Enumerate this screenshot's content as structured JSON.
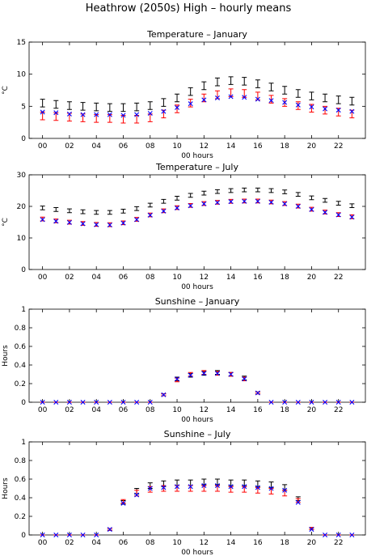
{
  "figure": {
    "title": "Heathrow (2050s) High – hourly means"
  },
  "colors": {
    "black_series": "#000000",
    "red_series": "#ff0000",
    "blue_series": "#0000ff"
  },
  "chart_data": [
    {
      "type": "scatter",
      "title": "Temperature – January",
      "xlabel": "00 hours",
      "ylabel": "°C",
      "ylim": [
        0,
        15
      ],
      "yticks": [
        "0",
        "5",
        "10",
        "15"
      ],
      "xticks": [
        "00",
        "02",
        "04",
        "06",
        "08",
        "10",
        "12",
        "14",
        "16",
        "18",
        "20",
        "22"
      ],
      "x": [
        0,
        1,
        2,
        3,
        4,
        5,
        6,
        7,
        8,
        9,
        10,
        11,
        12,
        13,
        14,
        15,
        16,
        17,
        18,
        19,
        20,
        21,
        22,
        23
      ],
      "series": [
        {
          "marker": "errorbar",
          "color": "#000000",
          "values": [
            5.5,
            5.3,
            5.1,
            5.0,
            4.9,
            4.8,
            4.8,
            4.9,
            5.1,
            5.6,
            6.3,
            7.3,
            8.2,
            8.8,
            9.0,
            8.9,
            8.5,
            8.0,
            7.5,
            7.0,
            6.6,
            6.3,
            6.0,
            5.8
          ],
          "err": [
            0.6,
            0.6,
            0.6,
            0.6,
            0.6,
            0.6,
            0.6,
            0.6,
            0.6,
            0.6,
            0.6,
            0.6,
            0.6,
            0.6,
            0.6,
            0.6,
            0.6,
            0.6,
            0.6,
            0.6,
            0.6,
            0.6,
            0.6,
            0.6
          ]
        },
        {
          "marker": "errorbar",
          "color": "#ff0000",
          "values": [
            3.5,
            3.4,
            3.3,
            3.2,
            3.1,
            3.1,
            3.0,
            3.0,
            3.2,
            3.8,
            4.6,
            5.5,
            6.3,
            6.8,
            7.1,
            7.0,
            6.6,
            6.1,
            5.6,
            5.1,
            4.7,
            4.4,
            4.1,
            3.8
          ],
          "err": [
            0.6,
            0.6,
            0.6,
            0.6,
            0.6,
            0.6,
            0.6,
            0.6,
            0.6,
            0.6,
            0.6,
            0.6,
            0.6,
            0.6,
            0.6,
            0.6,
            0.6,
            0.6,
            0.6,
            0.6,
            0.6,
            0.6,
            0.6,
            0.6
          ]
        },
        {
          "marker": "x",
          "color": "#0000ff",
          "values": [
            4.1,
            4.0,
            3.8,
            3.7,
            3.7,
            3.7,
            3.6,
            3.7,
            3.9,
            4.2,
            4.8,
            5.4,
            6.0,
            6.3,
            6.5,
            6.4,
            6.1,
            5.9,
            5.6,
            5.2,
            4.9,
            4.6,
            4.4,
            4.2
          ]
        }
      ]
    },
    {
      "type": "scatter",
      "title": "Temperature – July",
      "xlabel": "00 hours",
      "ylabel": "°C",
      "ylim": [
        0,
        30
      ],
      "yticks": [
        "0",
        "10",
        "20",
        "30"
      ],
      "xticks": [
        "00",
        "02",
        "04",
        "06",
        "08",
        "10",
        "12",
        "14",
        "16",
        "18",
        "20",
        "22"
      ],
      "x": [
        0,
        1,
        2,
        3,
        4,
        5,
        6,
        7,
        8,
        9,
        10,
        11,
        12,
        13,
        14,
        15,
        16,
        17,
        18,
        19,
        20,
        21,
        22,
        23
      ],
      "series": [
        {
          "marker": "errorbar",
          "color": "#000000",
          "values": [
            19.5,
            19.0,
            18.6,
            18.3,
            18.1,
            18.1,
            18.5,
            19.3,
            20.4,
            21.6,
            22.6,
            23.5,
            24.2,
            24.7,
            25.0,
            25.2,
            25.2,
            25.0,
            24.6,
            23.8,
            22.7,
            21.9,
            21.0,
            20.2
          ],
          "err": [
            0.6,
            0.6,
            0.6,
            0.6,
            0.6,
            0.6,
            0.6,
            0.6,
            0.6,
            0.6,
            0.6,
            0.6,
            0.6,
            0.6,
            0.6,
            0.6,
            0.6,
            0.6,
            0.6,
            0.6,
            0.6,
            0.6,
            0.6,
            0.6
          ]
        },
        {
          "marker": "errorbar",
          "color": "#ff0000",
          "values": [
            16.0,
            15.4,
            15.0,
            14.6,
            14.3,
            14.2,
            14.8,
            15.9,
            17.3,
            18.6,
            19.6,
            20.3,
            20.9,
            21.3,
            21.6,
            21.7,
            21.7,
            21.4,
            20.9,
            20.1,
            19.1,
            18.2,
            17.4,
            16.7
          ],
          "err": [
            0.6,
            0.6,
            0.6,
            0.6,
            0.6,
            0.6,
            0.6,
            0.6,
            0.6,
            0.6,
            0.6,
            0.6,
            0.6,
            0.6,
            0.6,
            0.6,
            0.6,
            0.6,
            0.6,
            0.6,
            0.6,
            0.6,
            0.6,
            0.6
          ]
        },
        {
          "marker": "x",
          "color": "#0000ff",
          "values": [
            15.8,
            15.3,
            14.9,
            14.5,
            14.2,
            14.1,
            14.7,
            15.8,
            17.2,
            18.5,
            19.5,
            20.2,
            20.8,
            21.2,
            21.5,
            21.6,
            21.6,
            21.3,
            20.8,
            20.0,
            19.0,
            18.1,
            17.3,
            16.6
          ]
        }
      ]
    },
    {
      "type": "scatter",
      "title": "Sunshine – January",
      "xlabel": "00 hours",
      "ylabel": "Hours",
      "ylim": [
        0,
        1
      ],
      "yticks": [
        "0",
        "0.2",
        "0.4",
        "0.6",
        "0.8",
        "1"
      ],
      "xticks": [
        "00",
        "02",
        "04",
        "06",
        "08",
        "10",
        "12",
        "14",
        "16",
        "18",
        "20",
        "22"
      ],
      "x": [
        0,
        1,
        2,
        3,
        4,
        5,
        6,
        7,
        8,
        9,
        10,
        11,
        12,
        13,
        14,
        15,
        16,
        17,
        18,
        19,
        20,
        21,
        22,
        23
      ],
      "series": [
        {
          "marker": "errorbar",
          "color": "#000000",
          "values": [
            0,
            0,
            0,
            0,
            0,
            0,
            0,
            0,
            0,
            0.08,
            0.25,
            0.29,
            0.31,
            0.32,
            0.3,
            0.26,
            0.1,
            0,
            0,
            0,
            0,
            0,
            0,
            0
          ],
          "err": [
            0,
            0,
            0,
            0,
            0,
            0,
            0,
            0,
            0,
            0.01,
            0.02,
            0.02,
            0.02,
            0.02,
            0.02,
            0.02,
            0.01,
            0,
            0,
            0,
            0,
            0,
            0,
            0
          ]
        },
        {
          "marker": "errorbar",
          "color": "#ff0000",
          "values": [
            0,
            0,
            0,
            0,
            0,
            0,
            0,
            0,
            0,
            0.08,
            0.24,
            0.3,
            0.32,
            0.31,
            0.3,
            0.25,
            0.1,
            0,
            0,
            0,
            0,
            0,
            0,
            0
          ],
          "err": [
            0,
            0,
            0,
            0,
            0,
            0,
            0,
            0,
            0,
            0.01,
            0.02,
            0.02,
            0.02,
            0.02,
            0.02,
            0.02,
            0.01,
            0,
            0,
            0,
            0,
            0,
            0,
            0
          ]
        },
        {
          "marker": "x",
          "color": "#0000ff",
          "values": [
            0,
            0,
            0,
            0,
            0,
            0,
            0,
            0,
            0,
            0.08,
            0.25,
            0.29,
            0.31,
            0.31,
            0.3,
            0.25,
            0.1,
            0,
            0,
            0,
            0,
            0,
            0,
            0
          ]
        }
      ]
    },
    {
      "type": "scatter",
      "title": "Sunshine – July",
      "xlabel": "00 hours",
      "ylabel": "Hours",
      "ylim": [
        0,
        1
      ],
      "yticks": [
        "0",
        "0.2",
        "0.4",
        "0.6",
        "0.8",
        "1"
      ],
      "xticks": [
        "00",
        "02",
        "04",
        "06",
        "08",
        "10",
        "12",
        "14",
        "16",
        "18",
        "20",
        "22"
      ],
      "x": [
        0,
        1,
        2,
        3,
        4,
        5,
        6,
        7,
        8,
        9,
        10,
        11,
        12,
        13,
        14,
        15,
        16,
        17,
        18,
        19,
        20,
        21,
        22,
        23
      ],
      "series": [
        {
          "marker": "errorbar",
          "color": "#000000",
          "values": [
            0,
            0,
            0,
            0,
            0,
            0.06,
            0.35,
            0.47,
            0.53,
            0.55,
            0.56,
            0.56,
            0.57,
            0.57,
            0.56,
            0.56,
            0.55,
            0.54,
            0.51,
            0.39,
            0.07,
            0,
            0,
            0
          ],
          "err": [
            0,
            0,
            0,
            0,
            0,
            0.01,
            0.02,
            0.03,
            0.03,
            0.03,
            0.03,
            0.03,
            0.03,
            0.03,
            0.03,
            0.03,
            0.03,
            0.03,
            0.03,
            0.02,
            0.01,
            0,
            0,
            0
          ]
        },
        {
          "marker": "errorbar",
          "color": "#ff0000",
          "values": [
            0,
            0,
            0,
            0,
            0,
            0.06,
            0.36,
            0.45,
            0.49,
            0.5,
            0.5,
            0.5,
            0.5,
            0.5,
            0.49,
            0.49,
            0.48,
            0.47,
            0.45,
            0.37,
            0.07,
            0,
            0,
            0
          ],
          "err": [
            0,
            0,
            0,
            0,
            0,
            0.01,
            0.02,
            0.03,
            0.03,
            0.03,
            0.03,
            0.03,
            0.03,
            0.03,
            0.03,
            0.03,
            0.03,
            0.03,
            0.03,
            0.02,
            0.01,
            0,
            0,
            0
          ]
        },
        {
          "marker": "x",
          "color": "#0000ff",
          "values": [
            0,
            0,
            0,
            0,
            0,
            0.06,
            0.34,
            0.43,
            0.5,
            0.51,
            0.52,
            0.52,
            0.53,
            0.53,
            0.52,
            0.52,
            0.51,
            0.5,
            0.48,
            0.35,
            0.06,
            0,
            0,
            0
          ]
        }
      ]
    }
  ]
}
